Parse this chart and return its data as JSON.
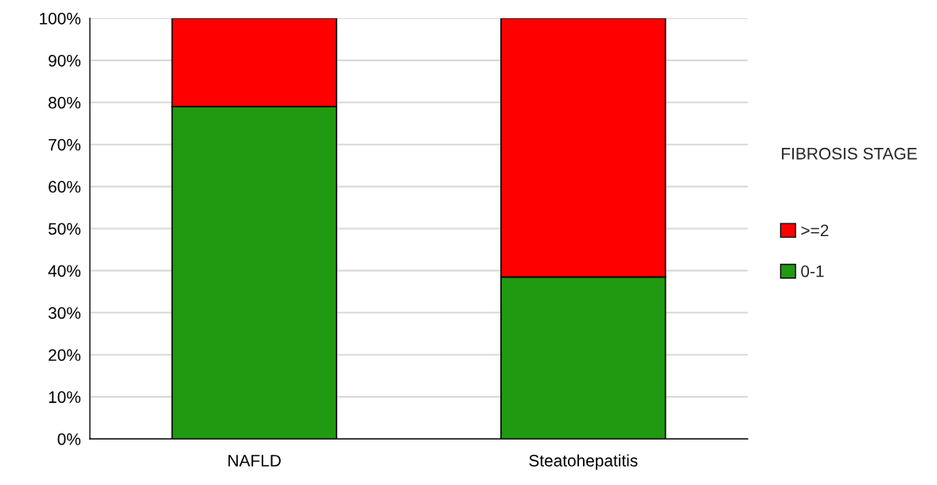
{
  "chart_data": {
    "type": "bar",
    "stacked": true,
    "categories": [
      "NAFLD",
      "Steatohepatitis"
    ],
    "series": [
      {
        "name": "0-1",
        "color": "#209a10",
        "values": [
          79,
          38.5
        ]
      },
      {
        "name": ">=2",
        "color": "#ff0000",
        "values": [
          21,
          61.5
        ]
      }
    ],
    "legend_title": "FIBROSIS STAGE",
    "legend": "right",
    "ylim": [
      0,
      100
    ],
    "yticks": [
      {
        "value": 0,
        "label": "0%"
      },
      {
        "value": 10,
        "label": "10%"
      },
      {
        "value": 20,
        "label": "20%"
      },
      {
        "value": 30,
        "label": "30%"
      },
      {
        "value": 40,
        "label": "40%"
      },
      {
        "value": 50,
        "label": "50%"
      },
      {
        "value": 60,
        "label": "60%"
      },
      {
        "value": 70,
        "label": "70%"
      },
      {
        "value": 80,
        "label": "80%"
      },
      {
        "value": 90,
        "label": "90%"
      },
      {
        "value": 100,
        "label": "100%"
      }
    ],
    "grid": "y"
  }
}
